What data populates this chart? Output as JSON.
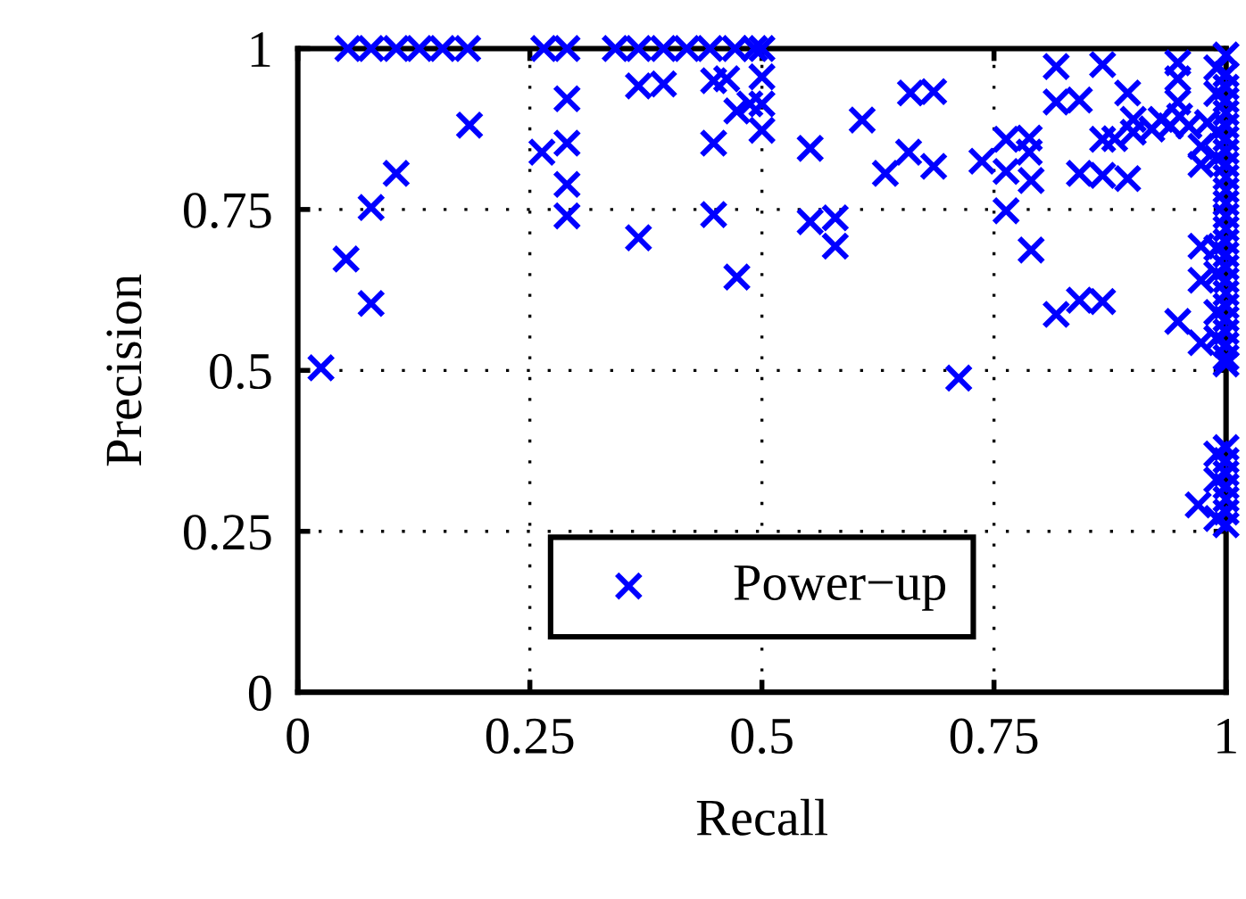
{
  "chart_data": {
    "type": "scatter",
    "xlabel": "Recall",
    "ylabel": "Precision",
    "xlim": [
      0,
      1
    ],
    "ylim": [
      0,
      1
    ],
    "xticks": [
      0,
      0.25,
      0.5,
      0.75,
      1
    ],
    "yticks": [
      0,
      0.25,
      0.5,
      0.75,
      1
    ],
    "grid": true,
    "legend": "bottom",
    "marker": "cross",
    "series": [
      {
        "name": "Power−up",
        "color": "#0000ff",
        "x": [
          0.054,
          0.079,
          0.106,
          0.131,
          0.156,
          0.183,
          0.265,
          0.29,
          0.342,
          0.367,
          0.394,
          0.419,
          0.444,
          0.471,
          0.492,
          0.5,
          0.29,
          0.185,
          0.263,
          0.29,
          0.106,
          0.29,
          0.079,
          0.29,
          0.052,
          0.079,
          0.025,
          0.367,
          0.394,
          0.448,
          0.473,
          0.5,
          0.5,
          0.5,
          0.462,
          0.487,
          0.448,
          0.367,
          0.448,
          0.473,
          0.817,
          0.867,
          0.948,
          0.948,
          0.66,
          0.685,
          0.608,
          0.817,
          0.842,
          0.552,
          0.658,
          0.633,
          0.685,
          0.737,
          0.763,
          0.788,
          0.763,
          0.788,
          0.79,
          0.763,
          0.79,
          0.552,
          0.579,
          0.579,
          0.842,
          0.867,
          0.894,
          0.867,
          0.712,
          0.817,
          0.842,
          0.867,
          0.948,
          0.973,
          0.973,
          0.973,
          0.88,
          0.9,
          0.92,
          0.94,
          0.96,
          0.98,
          0.9,
          0.93,
          0.95,
          0.894,
          0.948,
          0.973,
          0.973,
          0.97,
          1,
          1,
          1,
          1,
          1,
          1,
          1,
          1,
          1,
          1,
          1,
          1,
          1,
          1,
          1,
          1,
          1,
          1,
          1,
          1,
          1,
          1,
          1,
          1,
          1,
          0.99,
          0.99,
          0.99,
          0.99,
          0.99,
          0.99,
          0.99,
          0.99,
          1,
          1,
          1,
          1,
          1,
          1,
          1,
          0.99,
          0.99,
          0.99
        ],
        "values": [
          1,
          1,
          1,
          1,
          1,
          1,
          1,
          1,
          1,
          1,
          1,
          1,
          1,
          1,
          1,
          1,
          0.922,
          0.881,
          0.839,
          0.853,
          0.806,
          0.789,
          0.753,
          0.74,
          0.673,
          0.604,
          0.504,
          0.942,
          0.945,
          0.95,
          0.903,
          0.956,
          0.914,
          0.873,
          0.953,
          0.914,
          0.853,
          0.706,
          0.742,
          0.645,
          0.972,
          0.975,
          0.978,
          0.953,
          0.931,
          0.933,
          0.889,
          0.917,
          0.92,
          0.845,
          0.839,
          0.806,
          0.817,
          0.825,
          0.859,
          0.861,
          0.809,
          0.839,
          0.795,
          0.748,
          0.687,
          0.731,
          0.737,
          0.693,
          0.806,
          0.803,
          0.798,
          0.859,
          0.488,
          0.587,
          0.609,
          0.607,
          0.576,
          0.693,
          0.64,
          0.543,
          0.86,
          0.87,
          0.875,
          0.88,
          0.88,
          0.885,
          0.89,
          0.89,
          0.895,
          0.931,
          0.917,
          0.848,
          0.82,
          0.291,
          0.99,
          0.96,
          0.94,
          0.92,
          0.9,
          0.88,
          0.86,
          0.84,
          0.82,
          0.8,
          0.78,
          0.76,
          0.74,
          0.72,
          0.7,
          0.68,
          0.66,
          0.64,
          0.62,
          0.6,
          0.58,
          0.56,
          0.54,
          0.52,
          0.51,
          0.97,
          0.93,
          0.87,
          0.83,
          0.69,
          0.65,
          0.59,
          0.55,
          0.38,
          0.36,
          0.34,
          0.32,
          0.3,
          0.28,
          0.26,
          0.37,
          0.33,
          0.27
        ]
      }
    ]
  }
}
